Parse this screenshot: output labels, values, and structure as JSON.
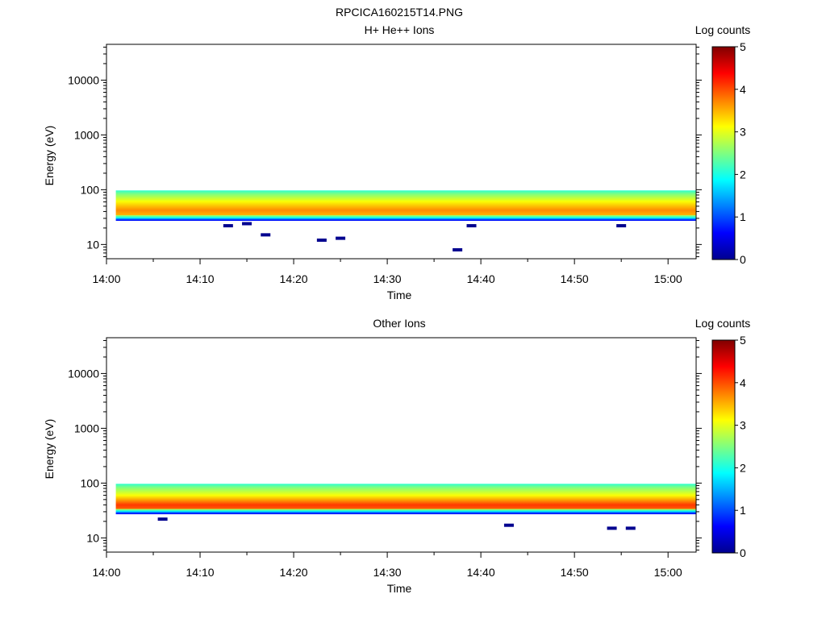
{
  "figure_title": "RPCICA160215T14.PNG",
  "chart_data": [
    {
      "type": "heatmap",
      "title": "H+ He++ Ions",
      "xlabel": "Time",
      "ylabel": "Energy (eV)",
      "x_ticks": [
        "14:00",
        "14:10",
        "14:20",
        "14:30",
        "14:40",
        "14:50",
        "15:00"
      ],
      "xlim": [
        "14:00",
        "15:03"
      ],
      "y_scale": "log",
      "y_ticks": [
        "10",
        "100",
        "1000",
        "10000"
      ],
      "ylim": [
        5.5,
        45000
      ],
      "colorbar": {
        "title": "Log counts",
        "ticks": [
          "0",
          "1",
          "2",
          "3",
          "4",
          "5"
        ],
        "range": [
          0,
          5
        ]
      },
      "band": {
        "time_start": "14:01",
        "time_end": "15:03",
        "energy_min_eV": 27,
        "energy_max_eV": 97,
        "peak_energy_eV": 42,
        "peak_log_counts": 3.7
      },
      "sparse_points": [
        {
          "time": "14:13",
          "energy_eV": 22
        },
        {
          "time": "14:15",
          "energy_eV": 24
        },
        {
          "time": "14:17",
          "energy_eV": 15
        },
        {
          "time": "14:23",
          "energy_eV": 12
        },
        {
          "time": "14:25",
          "energy_eV": 13
        },
        {
          "time": "14:37.5",
          "energy_eV": 8
        },
        {
          "time": "14:39",
          "energy_eV": 22
        },
        {
          "time": "14:55",
          "energy_eV": 22
        }
      ]
    },
    {
      "type": "heatmap",
      "title": "Other Ions",
      "xlabel": "Time",
      "ylabel": "Energy (eV)",
      "x_ticks": [
        "14:00",
        "14:10",
        "14:20",
        "14:30",
        "14:40",
        "14:50",
        "15:00"
      ],
      "xlim": [
        "14:00",
        "15:03"
      ],
      "y_scale": "log",
      "y_ticks": [
        "10",
        "100",
        "1000",
        "10000"
      ],
      "ylim": [
        5.5,
        45000
      ],
      "colorbar": {
        "title": "Log counts",
        "ticks": [
          "0",
          "1",
          "2",
          "3",
          "4",
          "5"
        ],
        "range": [
          0,
          5
        ]
      },
      "band": {
        "time_start": "14:01",
        "time_end": "15:03",
        "energy_min_eV": 27,
        "energy_max_eV": 97,
        "peak_energy_eV": 40,
        "peak_log_counts": 4.1
      },
      "sparse_points": [
        {
          "time": "14:06",
          "energy_eV": 22
        },
        {
          "time": "14:43",
          "energy_eV": 17
        },
        {
          "time": "14:54",
          "energy_eV": 15
        },
        {
          "time": "14:56",
          "energy_eV": 15
        }
      ]
    }
  ]
}
